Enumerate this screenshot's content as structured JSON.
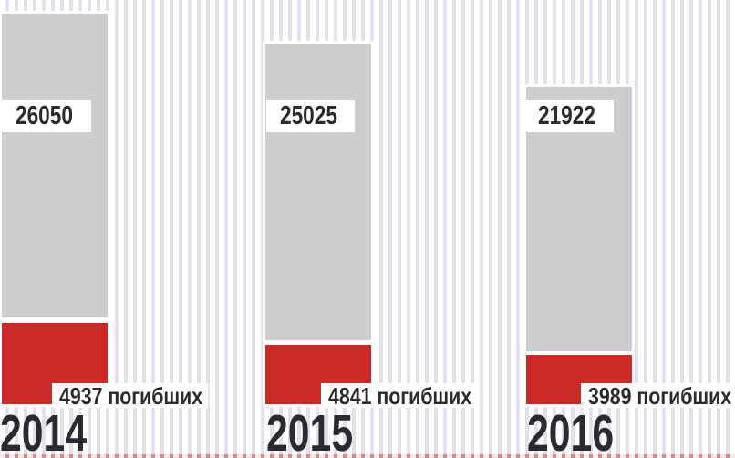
{
  "colors": {
    "total_bar": "#cdcdcd",
    "deaths_bar": "#cb2927",
    "stripe": "#e1e1ed",
    "ink": "#2b2b2f",
    "label_bg": "#ffffff"
  },
  "columns": [
    {
      "year": "2014",
      "total": "26050",
      "deaths_label": "4937 погибших"
    },
    {
      "year": "2015",
      "total": "25025",
      "deaths_label": "4841 погибших"
    },
    {
      "year": "2016",
      "total": "21922",
      "deaths_label": "3989 погибших"
    }
  ],
  "chart_data": {
    "type": "bar",
    "categories": [
      "2014",
      "2015",
      "2016"
    ],
    "series": [
      {
        "name": "",
        "values": [
          26050,
          25025,
          21922
        ],
        "color": "#cdcdcd"
      },
      {
        "name": "погибших",
        "values": [
          4937,
          4841,
          3989
        ],
        "color": "#cb2927"
      }
    ],
    "title": "",
    "xlabel": "",
    "ylabel": "",
    "grid": false,
    "legend_position": "none",
    "layout": "three bottom-aligned column pairs on pinstripe background",
    "annotations": [
      "26050",
      "25025",
      "21922",
      "4937 погибших",
      "4841 погибших",
      "3989 погибших"
    ]
  }
}
